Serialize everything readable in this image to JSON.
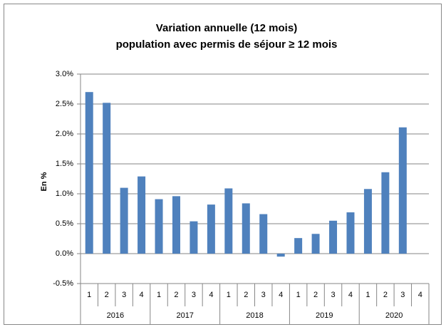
{
  "chart_data": {
    "type": "bar",
    "title": "Variation annuelle (12 mois)",
    "subtitle": "population avec permis de séjour ≥ 12 mois",
    "y_label": "En %",
    "categories": [
      "1",
      "2",
      "3",
      "4",
      "1",
      "2",
      "3",
      "4",
      "1",
      "2",
      "3",
      "4",
      "1",
      "2",
      "3",
      "4",
      "1",
      "2",
      "3",
      "4"
    ],
    "groups": [
      "2016",
      "2017",
      "2018",
      "2019",
      "2020"
    ],
    "values": [
      2.7,
      2.52,
      1.1,
      1.29,
      0.91,
      0.96,
      0.54,
      0.82,
      1.09,
      0.84,
      0.66,
      -0.05,
      0.26,
      0.33,
      0.55,
      0.69,
      1.08,
      1.36,
      2.11,
      null
    ],
    "color": "#4f81bd",
    "ylim": [
      -0.5,
      3.0
    ],
    "yticks": [
      {
        "value": -0.5,
        "label": "-0.5%"
      },
      {
        "value": 0.0,
        "label": "0.0%"
      },
      {
        "value": 0.5,
        "label": "0.5%"
      },
      {
        "value": 1.0,
        "label": "1.0%"
      },
      {
        "value": 1.5,
        "label": "1.5%"
      },
      {
        "value": 2.0,
        "label": "2.0%"
      },
      {
        "value": 2.5,
        "label": "2.5%"
      },
      {
        "value": 3.0,
        "label": "3.0%"
      }
    ],
    "grid": true
  }
}
